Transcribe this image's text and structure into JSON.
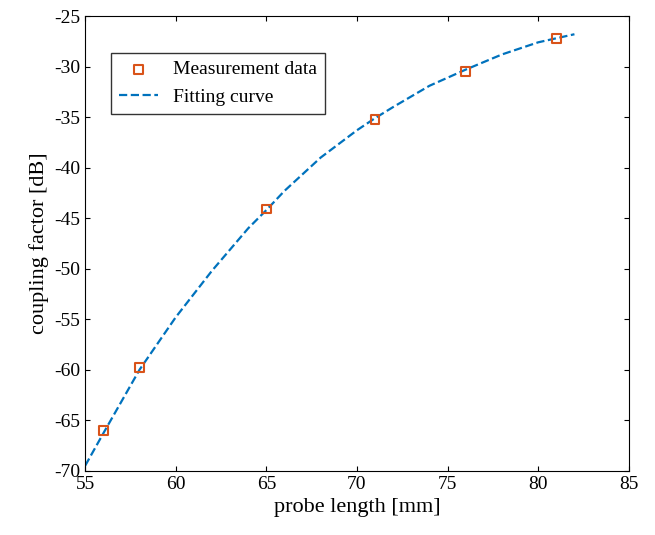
{
  "chart_data": {
    "type": "line",
    "x_label": "probe length [mm]",
    "y_label": "coupling factor [dB]",
    "xlim": [
      55,
      85
    ],
    "xticks": [
      55,
      60,
      65,
      70,
      75,
      80,
      85
    ],
    "ylim": [
      -70,
      -25
    ],
    "yticks": [
      -70,
      -65,
      -60,
      -55,
      -50,
      -45,
      -40,
      -35,
      -30,
      -25
    ],
    "grid": false,
    "legend": "upper left",
    "series": [
      {
        "name": "Measurement data",
        "type": "scatter",
        "color": "#d95319",
        "marker": "square",
        "x": [
          56,
          58,
          65,
          71,
          76,
          81
        ],
        "values": [
          -66,
          -59.8,
          -44.1,
          -35.2,
          -30.5,
          -27.2
        ]
      },
      {
        "name": "Fitting curve",
        "type": "line",
        "color": "#0072bd",
        "line_style": "dashed",
        "x": [
          55,
          56,
          58,
          60,
          62,
          64,
          65,
          66,
          68,
          70,
          71,
          72,
          74,
          76,
          78,
          80,
          82
        ],
        "values": [
          -69.5,
          -66.3,
          -60,
          -54.8,
          -50.2,
          -46,
          -44.2,
          -42.3,
          -39,
          -36.3,
          -35.1,
          -34,
          -31.9,
          -30.3,
          -28.8,
          -27.6,
          -26.8
        ]
      }
    ]
  }
}
